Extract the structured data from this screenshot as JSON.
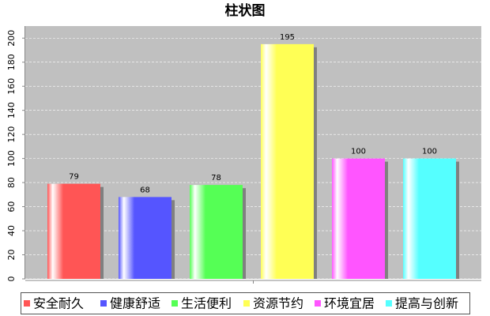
{
  "chart_data": {
    "type": "bar",
    "title": "柱状图",
    "categories": [
      null
    ],
    "series": [
      {
        "name": "安全耐久",
        "color": "#ff5555",
        "values": [
          79
        ]
      },
      {
        "name": "健康舒适",
        "color": "#5555ff",
        "values": [
          68
        ]
      },
      {
        "name": "生活便利",
        "color": "#55ff55",
        "values": [
          78
        ]
      },
      {
        "name": "资源节约",
        "color": "#ffff55",
        "values": [
          195
        ]
      },
      {
        "name": "环境宜居",
        "color": "#ff55ff",
        "values": [
          100
        ]
      },
      {
        "name": "提高与创新",
        "color": "#55ffff",
        "values": [
          100
        ]
      }
    ],
    "ylim": [
      0,
      210
    ],
    "yticks": [
      0,
      20,
      40,
      60,
      80,
      100,
      120,
      140,
      160,
      180,
      200
    ],
    "grid": true,
    "legend": "bottom"
  }
}
